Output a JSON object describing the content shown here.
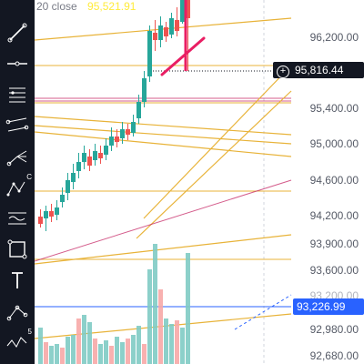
{
  "header": {
    "interval_label": "20 close",
    "last_value": "95,521.91"
  },
  "toolbar": {
    "tools": [
      {
        "name": "trend-line-tool-icon"
      },
      {
        "name": "horizontal-line-tool-icon"
      },
      {
        "name": "fib-retracement-tool-icon"
      },
      {
        "name": "channel-tool-icon"
      },
      {
        "name": "pitchfork-tool-icon"
      },
      {
        "name": "xabcd-pattern-tool-icon",
        "label": "C"
      },
      {
        "name": "elliott-wave-tool-icon"
      },
      {
        "name": "rectangle-tool-icon"
      },
      {
        "name": "text-tool-icon"
      },
      {
        "name": "measure-tool-icon"
      },
      {
        "name": "wave-tool-icon",
        "label": "5"
      }
    ]
  },
  "price_axis": {
    "labels": [
      "96,200.00",
      "95,400.00",
      "95,000.00",
      "94,600.00",
      "94,200.00",
      "93,900.00",
      "93,600.00",
      "93,200.00",
      "92,980.00",
      "92,680.00"
    ]
  },
  "crosshair": {
    "price": "95,816.44"
  },
  "blue_level": {
    "price": "93,226.99"
  },
  "colors": {
    "up": "#26a69a",
    "down": "#ef5350",
    "accent": "#2962ff",
    "toolbar_bg": "#131722",
    "trendline": "#e8b339",
    "red_line": "#c2185b"
  }
}
